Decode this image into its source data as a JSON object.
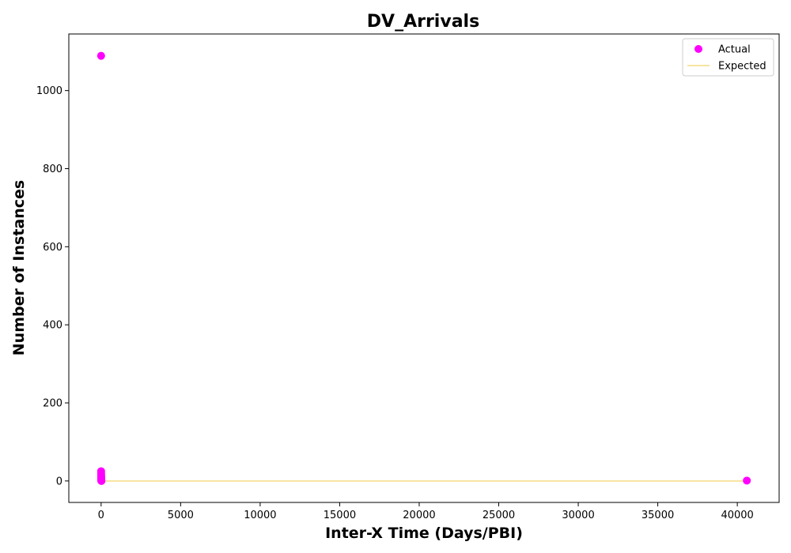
{
  "chart_data": {
    "type": "scatter",
    "title": "DV_Arrivals",
    "xlabel": "Inter-X Time (Days/PBI)",
    "ylabel": "Number of Instances",
    "xlim": [
      -2030,
      42630
    ],
    "ylim": [
      -55,
      1145
    ],
    "xticks": [
      0,
      5000,
      10000,
      15000,
      20000,
      25000,
      30000,
      35000,
      40000
    ],
    "yticks": [
      0,
      200,
      400,
      600,
      800,
      1000
    ],
    "grid": false,
    "legend_position": "top-right",
    "series": [
      {
        "name": "Actual",
        "kind": "scatter",
        "color": "#ff00ff",
        "points": [
          [
            0,
            1089
          ],
          [
            1,
            25
          ],
          [
            2,
            20
          ],
          [
            3,
            15
          ],
          [
            4,
            12
          ],
          [
            5,
            9
          ],
          [
            6,
            7
          ],
          [
            7,
            5
          ],
          [
            8,
            4
          ],
          [
            9,
            3
          ],
          [
            10,
            2
          ],
          [
            12,
            1
          ],
          [
            15,
            1
          ],
          [
            20,
            0
          ],
          [
            40600,
            1
          ]
        ]
      },
      {
        "name": "Expected",
        "kind": "line",
        "color": "#f5dc82",
        "points": [
          [
            0,
            0
          ],
          [
            40600,
            0
          ]
        ]
      }
    ]
  }
}
